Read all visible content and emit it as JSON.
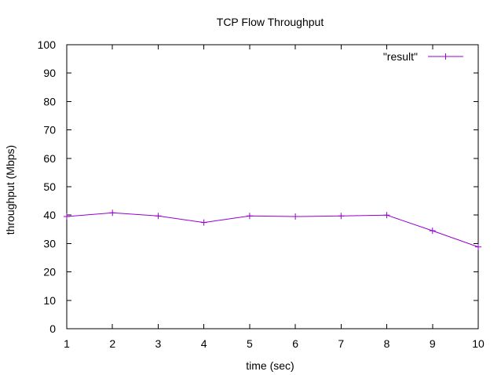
{
  "chart_data": {
    "type": "line",
    "title": "TCP Flow Throughput",
    "xlabel": "time (sec)",
    "ylabel": "throughput (Mbps)",
    "xlim": [
      1,
      10
    ],
    "ylim": [
      0,
      100
    ],
    "xticks": [
      1,
      2,
      3,
      4,
      5,
      6,
      7,
      8,
      9,
      10
    ],
    "yticks": [
      0,
      10,
      20,
      30,
      40,
      50,
      60,
      70,
      80,
      90,
      100
    ],
    "grid": false,
    "legend_position": "top-right",
    "series": [
      {
        "name": "\"result\"",
        "color": "#9400d3",
        "marker": "plus",
        "x": [
          1,
          2,
          3,
          4,
          5,
          6,
          7,
          8,
          9,
          10
        ],
        "y": [
          39.5,
          40.8,
          39.7,
          37.4,
          39.7,
          39.5,
          39.7,
          40.0,
          34.5,
          28.8
        ]
      }
    ]
  }
}
